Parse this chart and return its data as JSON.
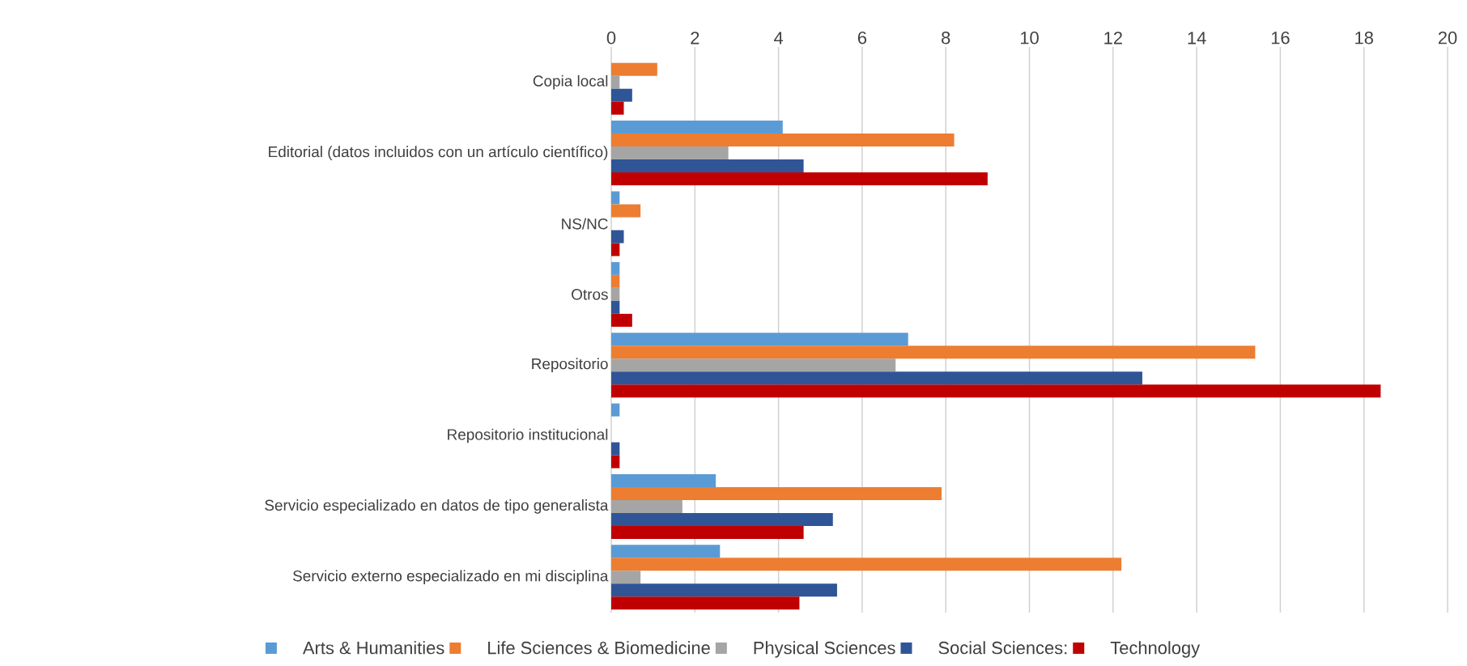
{
  "chart_data": {
    "type": "bar",
    "orientation": "horizontal",
    "categories": [
      "Copia  local",
      "Editorial  (datos  incluidos  con un  artículo  científico)",
      "NS/NC",
      "Otros",
      "Repositorio",
      "Repositorio  institucional",
      "Servicio  especializado  en datos de tipo  generalista",
      "Servicio  externo  especializado  en mi disciplina"
    ],
    "series": [
      {
        "name": "Arts & Humanities",
        "color": "#5b9bd5",
        "values": [
          0,
          4.1,
          0.2,
          0.2,
          7.1,
          0.2,
          2.5,
          2.6
        ]
      },
      {
        "name": "Life Sciences & Biomedicine",
        "color": "#ed7d31",
        "values": [
          1.1,
          8.2,
          0.7,
          0.2,
          15.4,
          0,
          7.9,
          12.2
        ]
      },
      {
        "name": "Physical Sciences",
        "color": "#a5a5a5",
        "values": [
          0.2,
          2.8,
          0,
          0.2,
          6.8,
          0,
          1.7,
          0.7
        ]
      },
      {
        "name": "Social Sciences:",
        "color": "#2f5597",
        "values": [
          0.5,
          4.6,
          0.3,
          0.2,
          12.7,
          0.2,
          5.3,
          5.4
        ]
      },
      {
        "name": "Technology",
        "color": "#c00000",
        "values": [
          0.3,
          9.0,
          0.2,
          0.5,
          18.4,
          0.2,
          4.6,
          4.5
        ]
      }
    ],
    "xlim": [
      0,
      20
    ],
    "xticks": [
      0,
      2,
      4,
      6,
      8,
      10,
      12,
      14,
      16,
      18,
      20
    ],
    "grid": "x",
    "legend": "bottom"
  }
}
